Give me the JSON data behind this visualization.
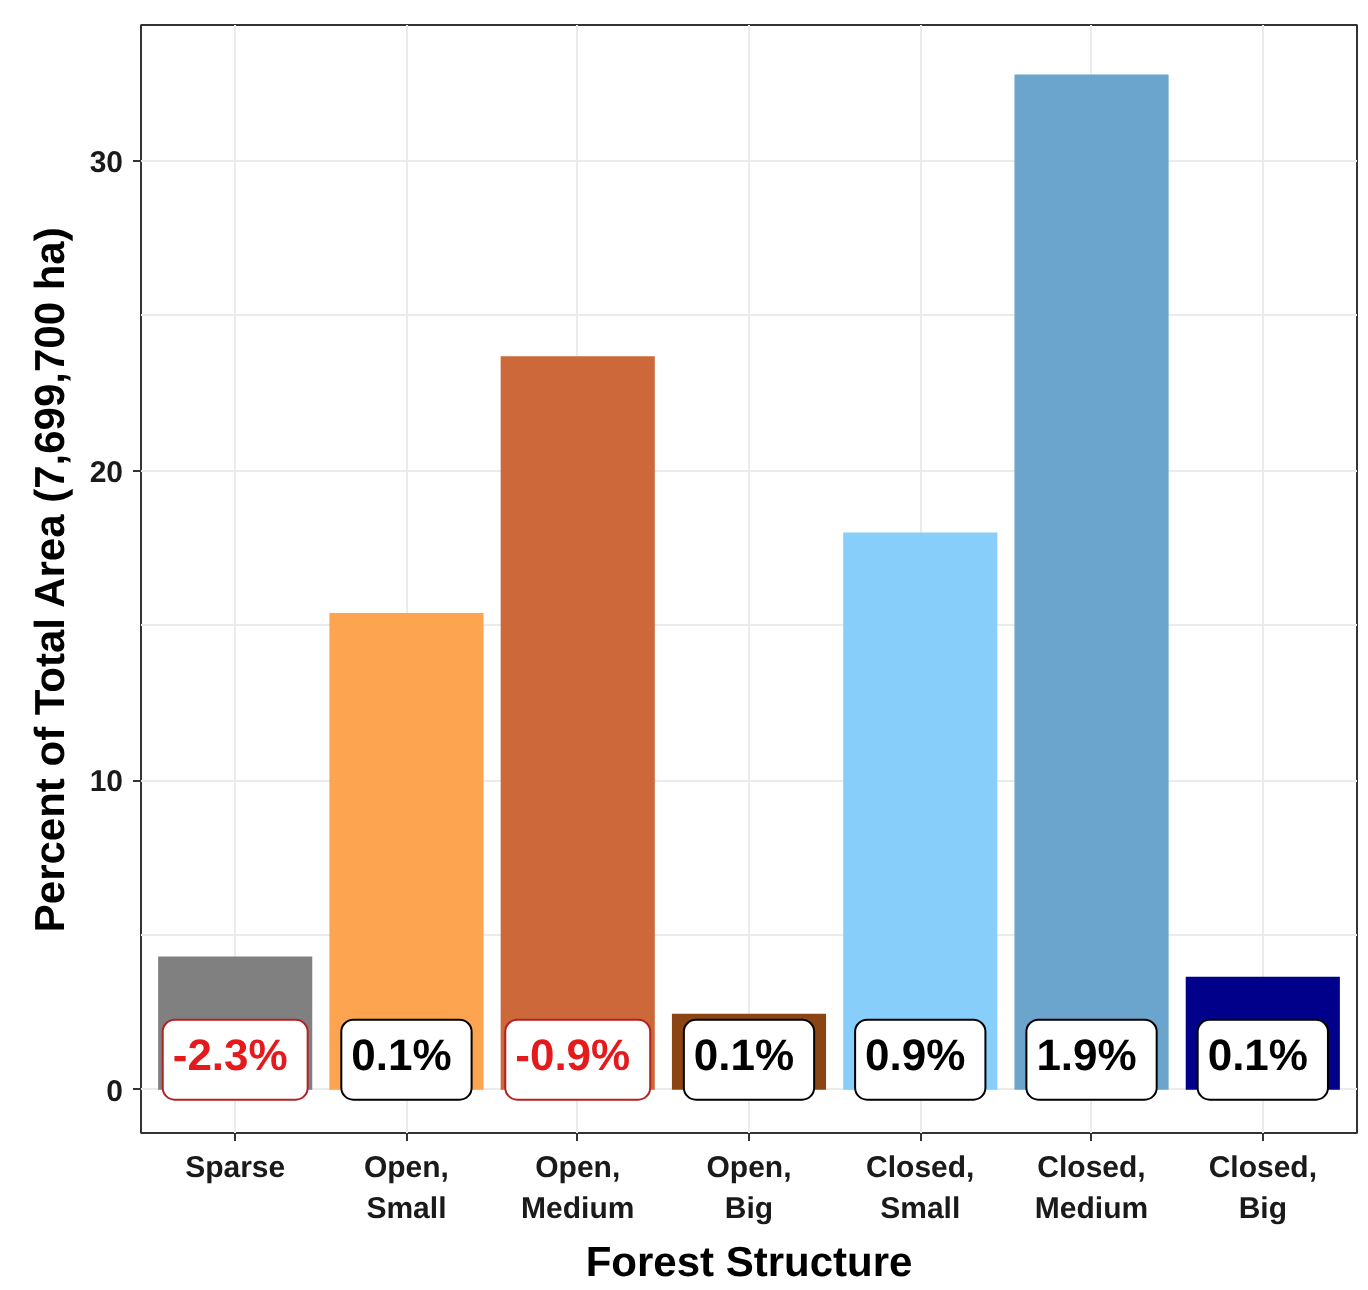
{
  "chart_data": {
    "type": "bar",
    "xlabel": "Forest Structure",
    "ylabel": "Percent of Total Area (7,699,700 ha)",
    "categories": [
      "Sparse",
      "Open, Small",
      "Open, Medium",
      "Open, Big",
      "Closed, Small",
      "Closed, Medium",
      "Closed, Big"
    ],
    "values": [
      4.3,
      15.4,
      23.7,
      2.45,
      18.0,
      32.8,
      3.65
    ],
    "colors": [
      "#808080",
      "#fca44f",
      "#cc6839",
      "#8b4513",
      "#87cefa",
      "#6ba5cd",
      "#00008b"
    ],
    "annotations": [
      "-2.3%",
      "0.1%",
      "-0.9%",
      "0.1%",
      "0.9%",
      "1.9%",
      "0.1%"
    ],
    "ylim": [
      -1.4,
      34.4
    ],
    "yticks": [
      0,
      10,
      20,
      30
    ],
    "grid": true
  }
}
